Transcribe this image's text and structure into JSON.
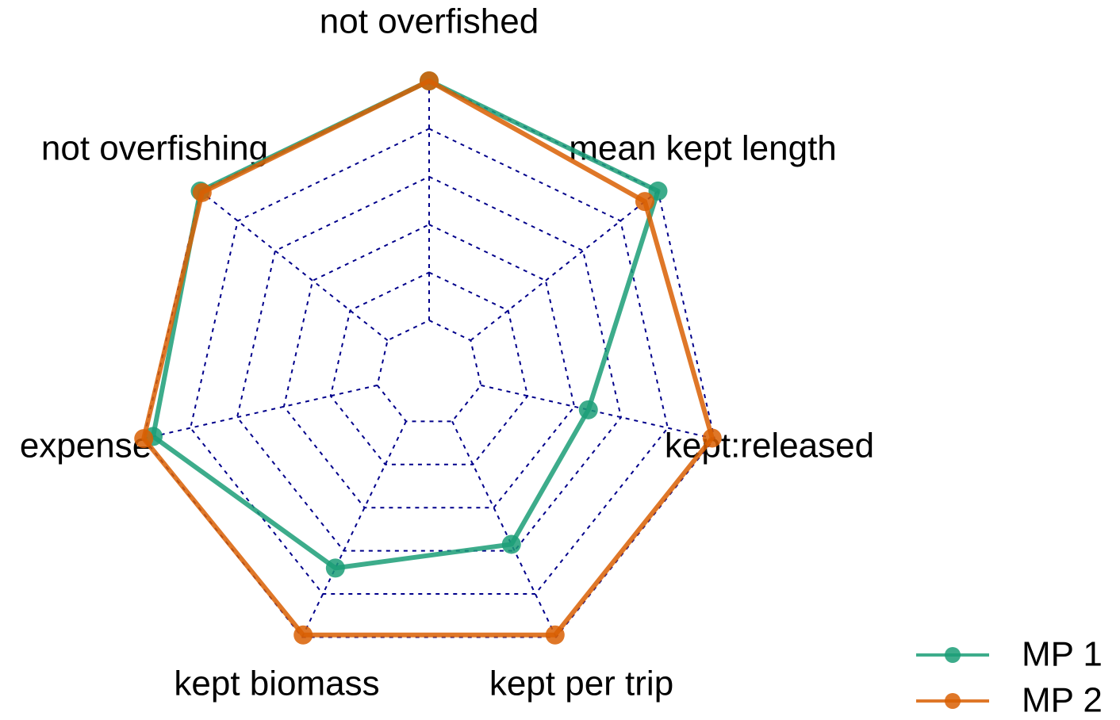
{
  "chart_data": {
    "type": "radar",
    "categories": [
      "not overfished",
      "mean kept length",
      "kept:released",
      "kept per trip",
      "kept biomass",
      "expense",
      "not overfishing"
    ],
    "rlim": [
      0,
      1
    ],
    "rticks": [
      0,
      0.2,
      0.4,
      0.6,
      0.8,
      1
    ],
    "grid_color": "#00008b",
    "legend": "bottom-right",
    "series": [
      {
        "name": "MP 1",
        "color": "#1b9e77",
        "values": [
          1.0,
          1.0,
          0.46,
          0.57,
          0.68,
          0.96,
          1.0
        ]
      },
      {
        "name": "MP 2",
        "color": "#d95f02",
        "values": [
          1.0,
          0.93,
          0.99,
          0.99,
          0.99,
          1.0,
          0.99
        ]
      }
    ]
  }
}
